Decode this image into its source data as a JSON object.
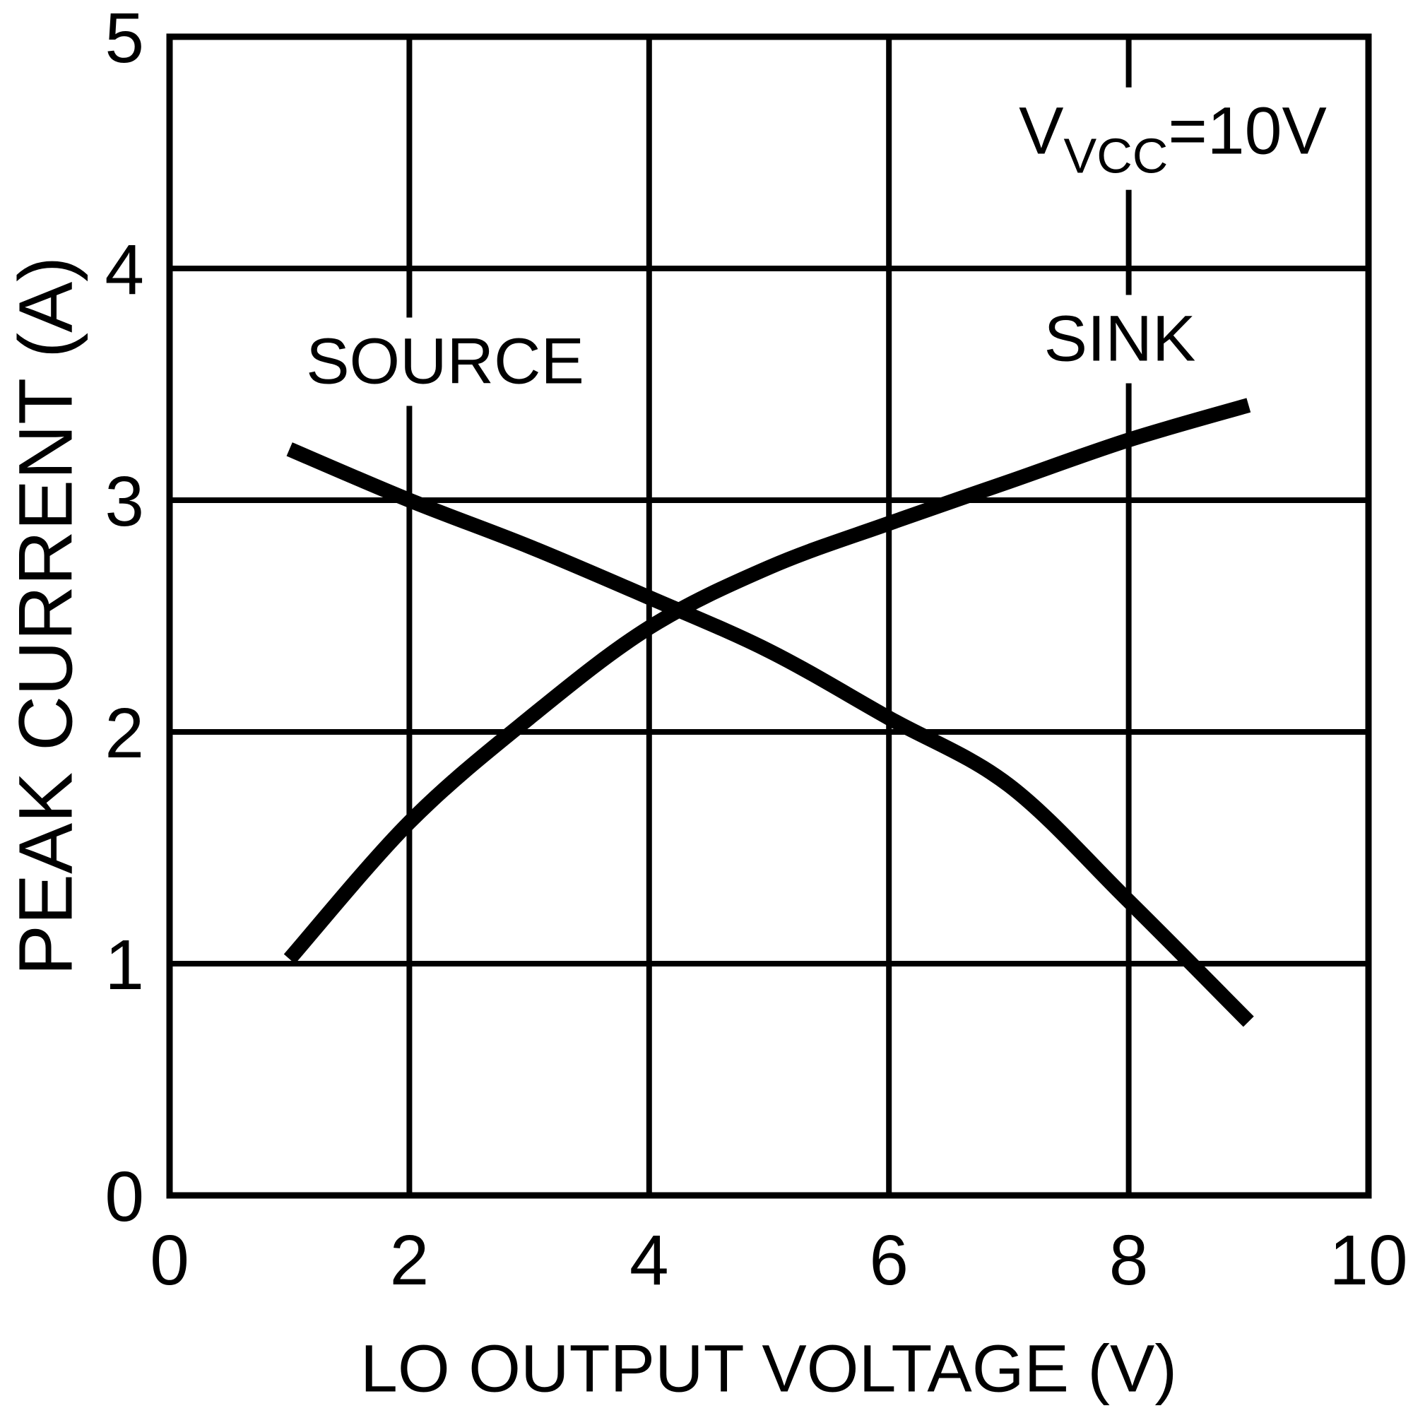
{
  "chart_data": {
    "type": "line",
    "title": "",
    "xlabel": "LO OUTPUT VOLTAGE (V)",
    "ylabel": "PEAK CURRENT (A)",
    "xlim": [
      0,
      10
    ],
    "ylim": [
      0,
      5
    ],
    "xticks": [
      0,
      2,
      4,
      6,
      8,
      10
    ],
    "yticks": [
      0,
      1,
      2,
      3,
      4,
      5
    ],
    "grid": true,
    "legend_position": "inline-curve-labels",
    "annotation": {
      "prefix": "V",
      "sub": "VCC",
      "suffix": "=10V"
    },
    "series": [
      {
        "name": "SOURCE",
        "x": [
          1,
          2,
          3,
          4,
          5,
          6,
          7,
          8,
          9
        ],
        "values": [
          3.22,
          3.0,
          2.8,
          2.58,
          2.35,
          2.06,
          1.77,
          1.27,
          0.75
        ]
      },
      {
        "name": "SINK",
        "x": [
          1,
          2,
          3,
          4,
          5,
          6,
          7,
          8,
          9
        ],
        "values": [
          1.02,
          1.61,
          2.06,
          2.45,
          2.71,
          2.9,
          3.08,
          3.26,
          3.41
        ]
      }
    ]
  },
  "colors": {
    "ink": "#000000",
    "background": "#ffffff"
  }
}
